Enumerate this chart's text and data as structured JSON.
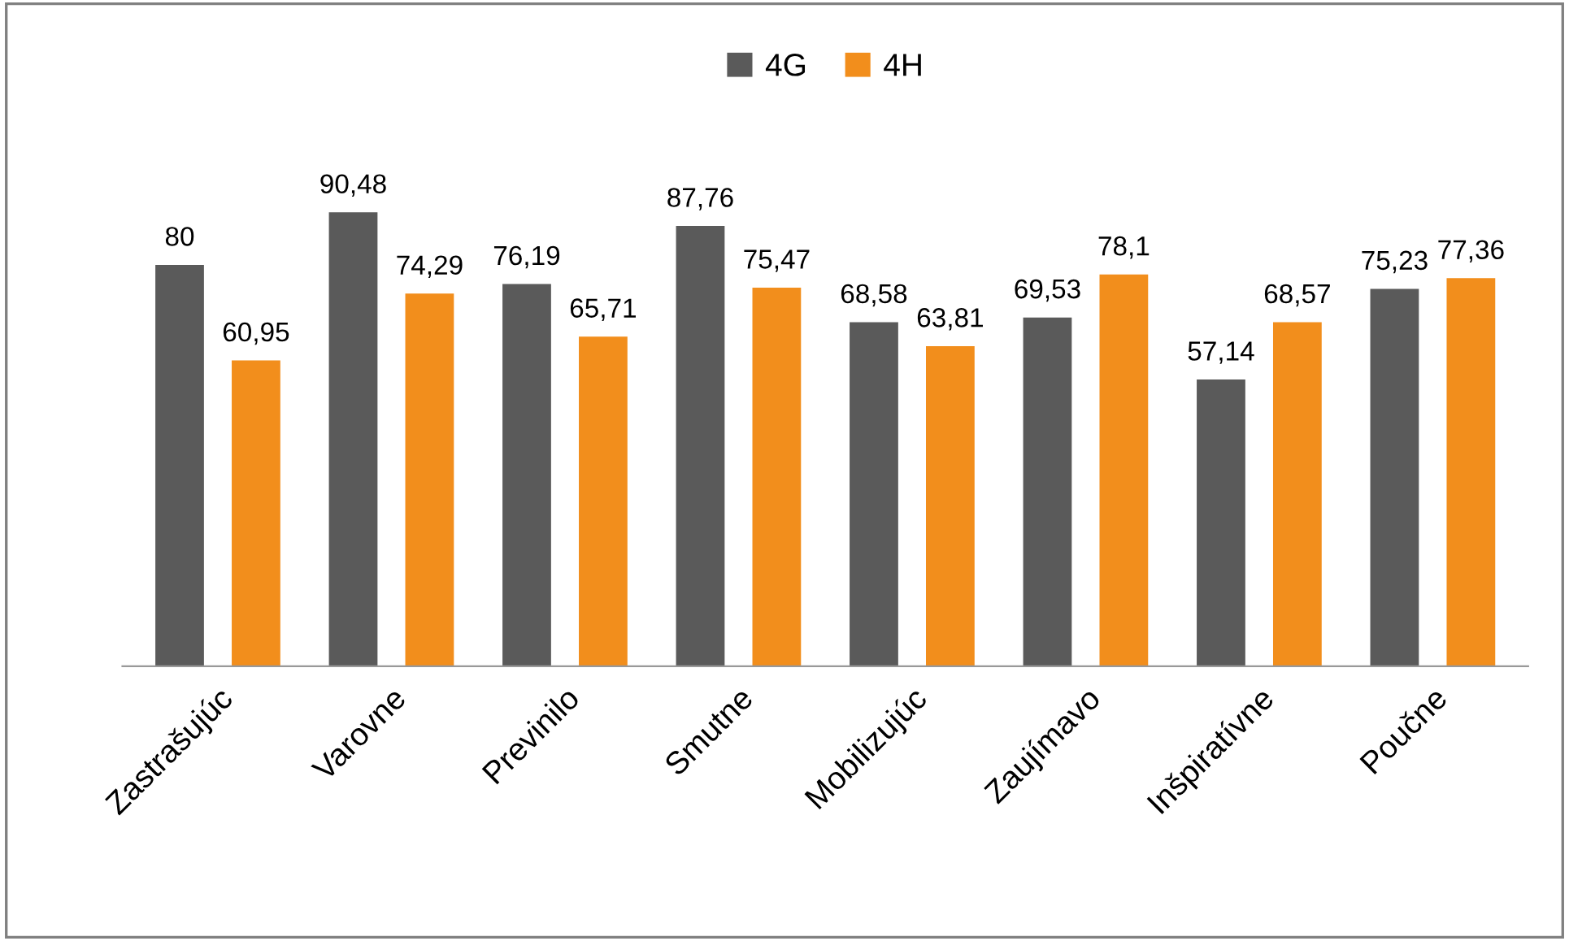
{
  "chart_data": {
    "type": "bar",
    "categories": [
      "Zastrašujúc",
      "Varovne",
      "Previnilo",
      "Smutne",
      "Mobilizujúc",
      "Zaujímavo",
      "Inšpiratívne",
      "Poučne"
    ],
    "series": [
      {
        "name": "4G",
        "color": "#5a5a5a",
        "values": [
          80,
          90.48,
          76.19,
          87.76,
          68.58,
          69.53,
          57.14,
          75.23
        ],
        "value_labels": [
          "80",
          "90,48",
          "76,19",
          "87,76",
          "68,58",
          "69,53",
          "57,14",
          "75,23"
        ]
      },
      {
        "name": "4H",
        "color": "#f28e1c",
        "values": [
          60.95,
          74.29,
          65.71,
          75.47,
          63.81,
          78.1,
          68.57,
          77.36
        ],
        "value_labels": [
          "60,95",
          "74,29",
          "65,71",
          "75,47",
          "63,81",
          "78,1",
          "68,57",
          "77,36"
        ]
      }
    ],
    "legend": "top",
    "grid": false
  }
}
